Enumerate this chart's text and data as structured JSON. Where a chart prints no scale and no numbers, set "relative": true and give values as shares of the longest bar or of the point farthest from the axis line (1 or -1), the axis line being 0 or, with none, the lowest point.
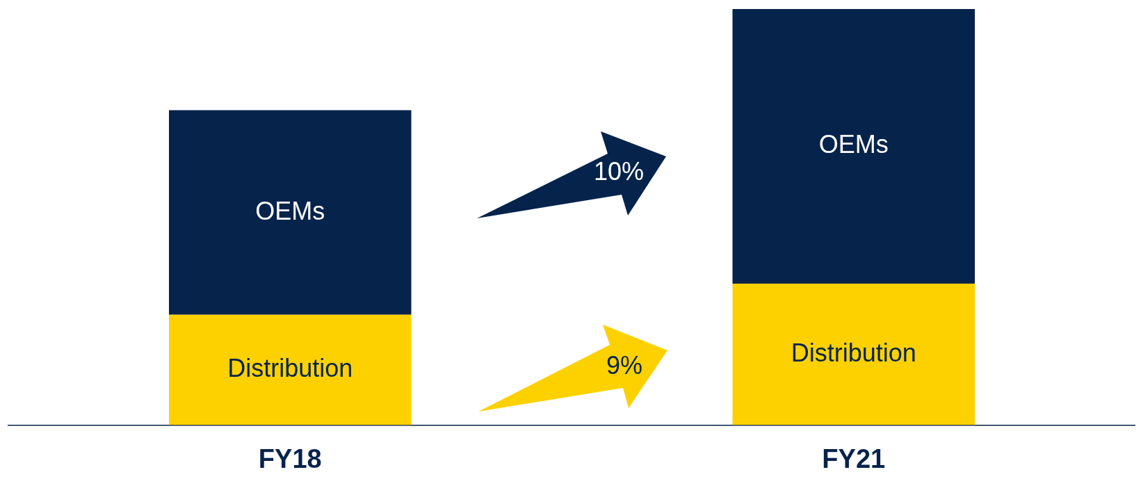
{
  "chart_data": {
    "type": "bar",
    "stacked": true,
    "relative": true,
    "categories": [
      "FY18",
      "FY21"
    ],
    "series": [
      {
        "name": "Distribution",
        "color": "#fdd100",
        "values": [
          0.265,
          0.34
        ]
      },
      {
        "name": "OEMs",
        "color": "#06234b",
        "values": [
          0.492,
          0.66
        ]
      }
    ],
    "annotations": [
      "10%",
      "9%"
    ],
    "legend": false,
    "grid": false
  }
}
